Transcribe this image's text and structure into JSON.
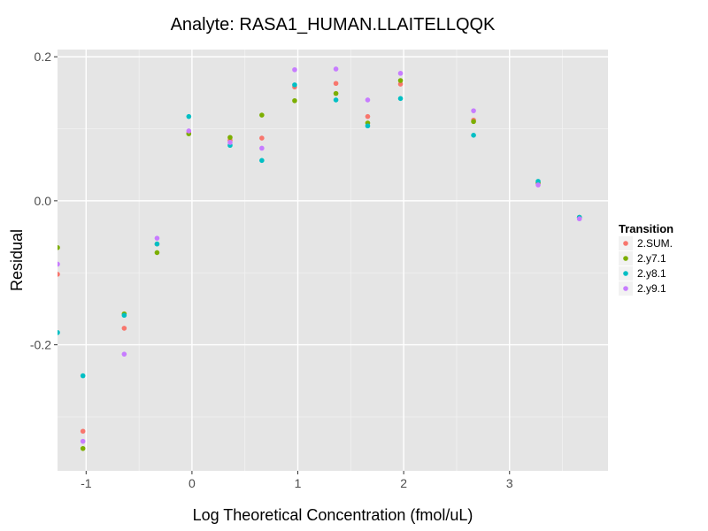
{
  "chart_data": {
    "type": "scatter",
    "title": "Analyte: RASA1_HUMAN.LLAITELLQQK",
    "xlabel": "Log Theoretical Concentration (fmol/uL)",
    "ylabel": "Residual",
    "xlim": [
      -1.27,
      3.93
    ],
    "ylim": [
      -0.375,
      0.21
    ],
    "x_ticks": [
      -1,
      0,
      1,
      2,
      3
    ],
    "x_tick_labels": [
      "-1",
      "0",
      "1",
      "2",
      "3"
    ],
    "y_ticks": [
      -0.2,
      0.0,
      0.2
    ],
    "y_tick_labels": [
      "-0.2",
      "0.0",
      "0.2"
    ],
    "background": "#e5e5e5",
    "grid": true,
    "legend": {
      "title": "Transition",
      "placement": "right"
    },
    "series": [
      {
        "name": "2.SUM.",
        "color": "#F8766D",
        "points": [
          [
            -1.27,
            -0.102
          ],
          [
            -1.03,
            -0.32
          ],
          [
            -0.64,
            -0.177
          ],
          [
            -0.33,
            -0.06
          ],
          [
            -0.03,
            0.094
          ],
          [
            0.36,
            0.084
          ],
          [
            0.66,
            0.087
          ],
          [
            0.97,
            0.158
          ],
          [
            1.36,
            0.163
          ],
          [
            1.66,
            0.117
          ],
          [
            1.97,
            0.162
          ],
          [
            2.66,
            0.112
          ],
          [
            3.27,
            0.024
          ],
          [
            3.66,
            -0.024
          ]
        ]
      },
      {
        "name": "2.y7.1",
        "color": "#7CAE00",
        "points": [
          [
            -1.27,
            -0.065
          ],
          [
            -1.03,
            -0.344
          ],
          [
            -0.64,
            -0.157
          ],
          [
            -0.33,
            -0.072
          ],
          [
            -0.03,
            0.093
          ],
          [
            0.36,
            0.088
          ],
          [
            0.66,
            0.119
          ],
          [
            0.97,
            0.139
          ],
          [
            1.36,
            0.149
          ],
          [
            1.66,
            0.108
          ],
          [
            1.97,
            0.167
          ],
          [
            2.66,
            0.11
          ],
          [
            3.27,
            0.025
          ],
          [
            3.66,
            -0.023
          ]
        ]
      },
      {
        "name": "2.y8.1",
        "color": "#00BFC4",
        "points": [
          [
            -1.27,
            -0.183
          ],
          [
            -1.03,
            -0.243
          ],
          [
            -0.64,
            -0.159
          ],
          [
            -0.33,
            -0.06
          ],
          [
            -0.03,
            0.117
          ],
          [
            0.36,
            0.077
          ],
          [
            0.66,
            0.056
          ],
          [
            0.97,
            0.161
          ],
          [
            1.36,
            0.14
          ],
          [
            1.66,
            0.104
          ],
          [
            1.97,
            0.142
          ],
          [
            2.66,
            0.091
          ],
          [
            3.27,
            0.027
          ],
          [
            3.66,
            -0.023
          ]
        ]
      },
      {
        "name": "2.y9.1",
        "color": "#C77CFF",
        "points": [
          [
            -1.27,
            -0.088
          ],
          [
            -1.03,
            -0.334
          ],
          [
            -0.64,
            -0.213
          ],
          [
            -0.33,
            -0.052
          ],
          [
            -0.03,
            0.097
          ],
          [
            0.36,
            0.081
          ],
          [
            0.66,
            0.073
          ],
          [
            0.97,
            0.182
          ],
          [
            1.36,
            0.183
          ],
          [
            1.66,
            0.14
          ],
          [
            1.97,
            0.177
          ],
          [
            2.66,
            0.125
          ],
          [
            3.27,
            0.022
          ],
          [
            3.66,
            -0.025
          ]
        ]
      }
    ]
  }
}
